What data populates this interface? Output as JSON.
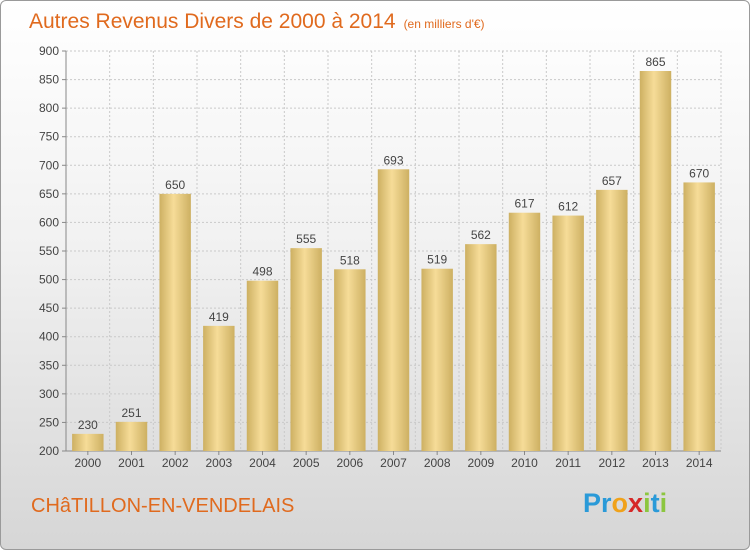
{
  "title": "Autres Revenus Divers de 2000 à 2014",
  "unit": "(en milliers d'€)",
  "commune": "CHâTILLON-EN-VENDELAIS",
  "logo": {
    "letters": [
      "P",
      "r",
      "o",
      "x",
      "i",
      "t",
      "i"
    ],
    "colors": [
      "#2a9ad8",
      "#2a9ad8",
      "#f0a21a",
      "#d62828",
      "#8cc63f",
      "#2a9ad8",
      "#8cc63f"
    ]
  },
  "colors": {
    "title": "#e06a1e",
    "bar_light": "#f6dc98",
    "bar_dark": "#cdb062",
    "grid": "#c9c9c9"
  },
  "chart_data": {
    "type": "bar",
    "title": "Autres Revenus Divers de 2000 à 2014",
    "unit": "(en milliers d'€)",
    "categories": [
      "2000",
      "2001",
      "2002",
      "2003",
      "2004",
      "2005",
      "2006",
      "2007",
      "2008",
      "2009",
      "2010",
      "2011",
      "2012",
      "2013",
      "2014"
    ],
    "values": [
      230,
      251,
      650,
      419,
      498,
      555,
      518,
      693,
      519,
      562,
      617,
      612,
      657,
      865,
      670
    ],
    "ylim": [
      200,
      900
    ],
    "yticks": [
      200,
      250,
      300,
      350,
      400,
      450,
      500,
      550,
      600,
      650,
      700,
      750,
      800,
      850,
      900
    ],
    "grid": true,
    "data_labels": true
  }
}
